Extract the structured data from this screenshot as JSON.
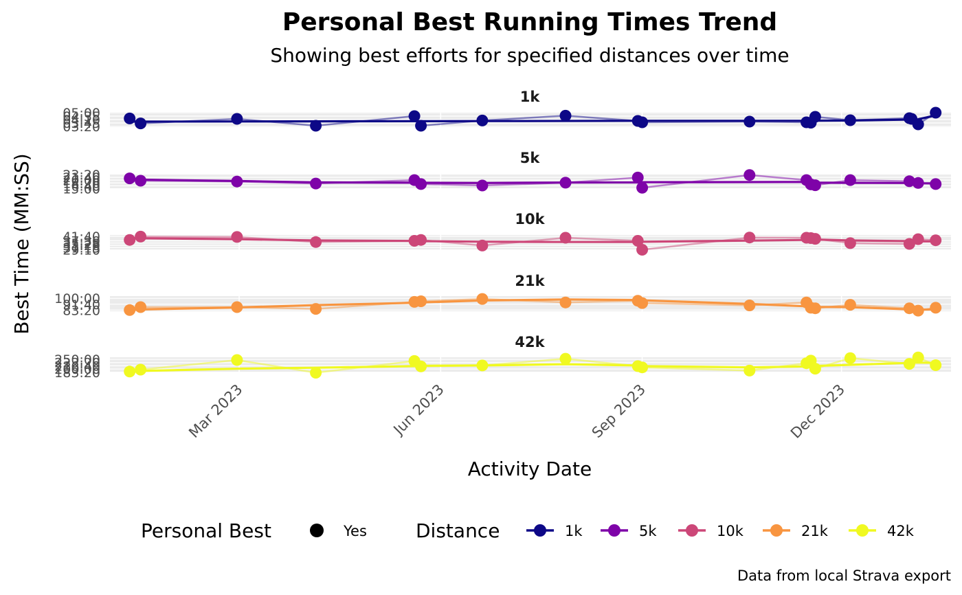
{
  "chart_data": {
    "type": "line",
    "title": "Personal Best Running Times Trend",
    "subtitle": "Showing best efforts for specified distances over time",
    "xlabel": "Activity Date",
    "ylabel": "Best Time (MM:SS)",
    "caption": "Data from local Strava export",
    "x_ticks": [
      {
        "date": "2023-03-01",
        "label": "Mar 2023"
      },
      {
        "date": "2023-06-01",
        "label": "Jun 2023"
      },
      {
        "date": "2023-09-01",
        "label": "Sep 2023"
      },
      {
        "date": "2023-12-01",
        "label": "Dec 2023"
      }
    ],
    "xlim": [
      "2023-01-01",
      "2024-01-20"
    ],
    "legend": {
      "position": "bottom",
      "shape_title": "Personal Best",
      "shape_label": "Yes",
      "color_title": "Distance"
    },
    "panels": [
      {
        "name": "1k",
        "color": "#0D0887",
        "ylim_sec": [
          195,
          305
        ],
        "ticks": [
          "03:20",
          "03:45",
          "04:10",
          "04:35",
          "05:00"
        ],
        "dates": [
          "2023-01-10",
          "2023-01-15",
          "2023-02-28",
          "2023-04-05",
          "2023-05-20",
          "2023-05-23",
          "2023-06-20",
          "2023-07-28",
          "2023-08-30",
          "2023-09-01",
          "2023-10-20",
          "2023-11-15",
          "2023-11-17",
          "2023-11-19",
          "2023-12-05",
          "2024-01-01",
          "2024-01-02",
          "2024-01-05",
          "2024-01-13"
        ],
        "values_sec": [
          258,
          222,
          255,
          205,
          275,
          205,
          243,
          278,
          240,
          230,
          235,
          230,
          227,
          270,
          245,
          260,
          255,
          215,
          300
        ],
        "trend_sec": [
          235,
          235,
          236,
          237,
          238,
          238,
          239,
          240,
          241,
          241,
          241,
          241,
          242,
          242,
          243,
          250,
          251,
          252,
          280
        ]
      },
      {
        "name": "5k",
        "color": "#7E03A8",
        "ylim_sec": [
          890,
          1420
        ],
        "ticks": [
          "15:00",
          "16:40",
          "18:20",
          "20:00",
          "21:40",
          "23:20"
        ],
        "dates": [
          "2023-01-10",
          "2023-01-15",
          "2023-02-28",
          "2023-04-05",
          "2023-05-20",
          "2023-05-23",
          "2023-06-20",
          "2023-07-28",
          "2023-08-30",
          "2023-09-01",
          "2023-10-20",
          "2023-11-15",
          "2023-11-17",
          "2023-11-19",
          "2023-12-05",
          "2024-01-01",
          "2024-01-05",
          "2024-01-13"
        ],
        "values_sec": [
          1260,
          1180,
          1150,
          1080,
          1200,
          1060,
          1010,
          1110,
          1290,
          930,
          1380,
          1200,
          1050,
          1020,
          1200,
          1160,
          1100,
          1060
        ],
        "trend_sec": [
          1225,
          1215,
          1170,
          1120,
          1110,
          1105,
          1100,
          1115,
          1120,
          1125,
          1130,
          1135,
          1115,
          1110,
          1105,
          1100,
          1090,
          1085
        ]
      },
      {
        "name": "10k",
        "color": "#CC4778",
        "ylim_sec": [
          1740,
          2570
        ],
        "ticks": [
          "29:10",
          "31:15",
          "33:20",
          "35:25",
          "37:30",
          "41:40"
        ],
        "dates": [
          "2023-01-10",
          "2023-01-15",
          "2023-02-28",
          "2023-04-05",
          "2023-05-20",
          "2023-05-23",
          "2023-06-20",
          "2023-07-28",
          "2023-08-30",
          "2023-09-01",
          "2023-10-20",
          "2023-11-15",
          "2023-11-17",
          "2023-11-19",
          "2023-12-05",
          "2024-01-01",
          "2024-01-05",
          "2024-01-13"
        ],
        "values_sec": [
          2300,
          2480,
          2460,
          2180,
          2250,
          2300,
          1990,
          2420,
          2250,
          1760,
          2430,
          2420,
          2400,
          2360,
          2120,
          2080,
          2340,
          2280
        ],
        "trend_sec": [
          2390,
          2390,
          2340,
          2270,
          2240,
          2230,
          2200,
          2185,
          2190,
          2195,
          2260,
          2300,
          2310,
          2320,
          2270,
          2230,
          2220,
          2215
        ]
      },
      {
        "name": "21k",
        "color": "#F89540",
        "ylim_sec": [
          4900,
          6190
        ],
        "ticks": [
          "83:20",
          "91:40",
          "100:00"
        ],
        "dates": [
          "2023-01-10",
          "2023-01-15",
          "2023-02-28",
          "2023-04-05",
          "2023-05-20",
          "2023-05-23",
          "2023-06-20",
          "2023-07-28",
          "2023-08-30",
          "2023-09-01",
          "2023-10-20",
          "2023-11-15",
          "2023-11-17",
          "2023-11-19",
          "2023-12-05",
          "2024-01-01",
          "2024-01-05",
          "2024-01-13"
        ],
        "values_sec": [
          5000,
          5250,
          5250,
          5100,
          5700,
          5750,
          5950,
          5650,
          5800,
          5600,
          5400,
          5650,
          5200,
          5150,
          5450,
          5150,
          4950,
          5200
        ],
        "trend_sec": [
          5000,
          5050,
          5220,
          5420,
          5620,
          5650,
          5820,
          5900,
          5860,
          5830,
          5520,
          5320,
          5290,
          5270,
          5250,
          5060,
          5040,
          5060
        ]
      },
      {
        "name": "42k",
        "color": "#F0F921",
        "ylim_sec": [
          10950,
          15650
        ],
        "ticks": [
          "183:20",
          "200:00",
          "216:40",
          "233:20",
          "250:00"
        ],
        "dates": [
          "2023-01-10",
          "2023-01-15",
          "2023-02-28",
          "2023-04-05",
          "2023-05-20",
          "2023-05-23",
          "2023-06-20",
          "2023-07-28",
          "2023-08-30",
          "2023-09-01",
          "2023-10-20",
          "2023-11-15",
          "2023-11-17",
          "2023-11-19",
          "2023-12-05",
          "2024-01-01",
          "2024-01-05",
          "2024-01-13"
        ],
        "values_sec": [
          11200,
          11800,
          14800,
          10850,
          14500,
          12800,
          13100,
          15200,
          12900,
          12500,
          11500,
          13800,
          14600,
          12100,
          15400,
          13600,
          15600,
          13200
        ],
        "trend_sec": [
          11200,
          11400,
          12100,
          12400,
          12900,
          13000,
          13100,
          13500,
          13100,
          12900,
          12500,
          12800,
          12900,
          12950,
          13300,
          13900,
          14000,
          13900
        ]
      }
    ]
  }
}
